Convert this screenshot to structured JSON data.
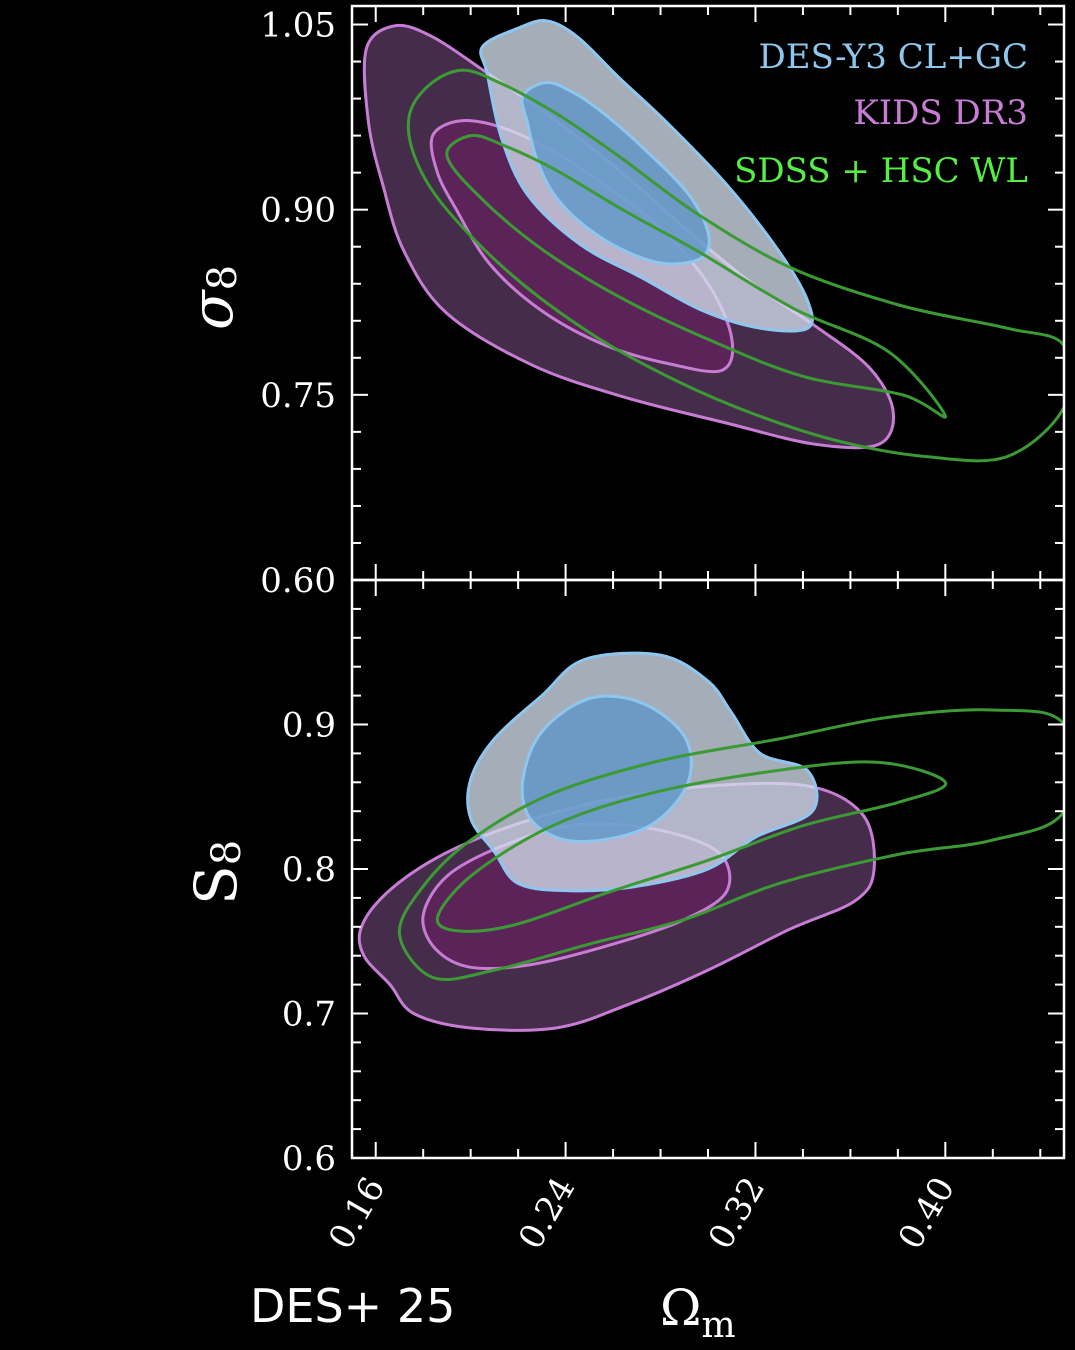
{
  "credit": "DES+ 25",
  "colors": {
    "des_y3": "#8fc6ee",
    "kids": "#c77dd4",
    "sdss_hsc": "#3c9a34",
    "sdss_hsc_legend": "#55ee44",
    "axes": "#ffffff",
    "background": "#000000"
  },
  "chart_data": [
    {
      "type": "contour",
      "panel": "top",
      "xlabel": "Ω",
      "xlabel_sub": "m",
      "ylabel": "σ",
      "ylabel_sub": "8",
      "xlim": [
        0.15,
        0.45
      ],
      "ylim": [
        0.6,
        1.065
      ],
      "xticks": [
        "0.16",
        "0.24",
        "0.32",
        "0.40"
      ],
      "yticks": [
        "0.60",
        "0.75",
        "0.90",
        "1.05"
      ],
      "legend": {
        "position": "top-right",
        "entries": [
          "DES-Y3 CL+GC",
          "KIDS DR3",
          "SDSS + HSC WL"
        ]
      },
      "series": [
        {
          "name": "KIDS DR3",
          "fill": true,
          "levels": [
            {
              "points": [
                [
                  0.156,
                  1.03
                ],
                [
                  0.168,
                  1.049
                ],
                [
                  0.184,
                  1.04
                ],
                [
                  0.206,
                  1.012
                ],
                [
                  0.236,
                  0.972
                ],
                [
                  0.265,
                  0.928
                ],
                [
                  0.292,
                  0.882
                ],
                [
                  0.318,
                  0.841
                ],
                [
                  0.345,
                  0.806
                ],
                [
                  0.368,
                  0.772
                ],
                [
                  0.378,
                  0.737
                ],
                [
                  0.372,
                  0.71
                ],
                [
                  0.345,
                  0.71
                ],
                [
                  0.306,
                  0.728
                ],
                [
                  0.265,
                  0.748
                ],
                [
                  0.226,
                  0.774
                ],
                [
                  0.19,
                  0.816
                ],
                [
                  0.172,
                  0.866
                ],
                [
                  0.163,
                  0.92
                ],
                [
                  0.157,
                  0.97
                ]
              ]
            },
            {
              "points": [
                [
                  0.184,
                  0.96
                ],
                [
                  0.196,
                  0.972
                ],
                [
                  0.214,
                  0.966
                ],
                [
                  0.236,
                  0.946
                ],
                [
                  0.258,
                  0.918
                ],
                [
                  0.28,
                  0.885
                ],
                [
                  0.3,
                  0.84
                ],
                [
                  0.31,
                  0.796
                ],
                [
                  0.306,
                  0.77
                ],
                [
                  0.284,
                  0.775
                ],
                [
                  0.257,
                  0.79
                ],
                [
                  0.23,
                  0.818
                ],
                [
                  0.208,
                  0.856
                ],
                [
                  0.194,
                  0.9
                ],
                [
                  0.186,
                  0.93
                ]
              ]
            }
          ]
        },
        {
          "name": "DES-Y3 CL+GC",
          "fill": true,
          "levels": [
            {
              "points": [
                [
                  0.207,
                  1.01
                ],
                [
                  0.205,
                  1.032
                ],
                [
                  0.22,
                  1.047
                ],
                [
                  0.232,
                  1.053
                ],
                [
                  0.245,
                  1.04
                ],
                [
                  0.262,
                  1.008
                ],
                [
                  0.283,
                  0.97
                ],
                [
                  0.308,
                  0.92
                ],
                [
                  0.33,
                  0.866
                ],
                [
                  0.342,
                  0.826
                ],
                [
                  0.342,
                  0.804
                ],
                [
                  0.322,
                  0.804
                ],
                [
                  0.298,
                  0.818
                ],
                [
                  0.272,
                  0.845
                ],
                [
                  0.246,
                  0.872
                ],
                [
                  0.224,
                  0.912
                ],
                [
                  0.213,
                  0.958
                ]
              ]
            },
            {
              "points": [
                [
                  0.224,
                  0.97
                ],
                [
                  0.222,
                  0.992
                ],
                [
                  0.232,
                  1.003
                ],
                [
                  0.244,
                  0.994
                ],
                [
                  0.258,
                  0.975
                ],
                [
                  0.276,
                  0.944
                ],
                [
                  0.292,
                  0.912
                ],
                [
                  0.3,
                  0.882
                ],
                [
                  0.298,
                  0.862
                ],
                [
                  0.284,
                  0.856
                ],
                [
                  0.268,
                  0.864
                ],
                [
                  0.25,
                  0.884
                ],
                [
                  0.236,
                  0.91
                ],
                [
                  0.228,
                  0.94
                ]
              ]
            }
          ]
        },
        {
          "name": "SDSS + HSC WL",
          "fill": false,
          "levels": [
            {
              "points": [
                [
                  0.174,
                  0.975
                ],
                [
                  0.182,
                  1.0
                ],
                [
                  0.196,
                  1.013
                ],
                [
                  0.212,
                  1.003
                ],
                [
                  0.236,
                  0.978
                ],
                [
                  0.262,
                  0.944
                ],
                [
                  0.296,
                  0.896
                ],
                [
                  0.336,
                  0.852
                ],
                [
                  0.382,
                  0.822
                ],
                [
                  0.426,
                  0.804
                ],
                [
                  0.45,
                  0.79
                ],
                [
                  0.45,
                  0.74
                ],
                [
                  0.426,
                  0.7
                ],
                [
                  0.392,
                  0.7
                ],
                [
                  0.356,
                  0.712
                ],
                [
                  0.32,
                  0.734
                ],
                [
                  0.286,
                  0.762
                ],
                [
                  0.252,
                  0.798
                ],
                [
                  0.218,
                  0.846
                ],
                [
                  0.19,
                  0.9
                ],
                [
                  0.177,
                  0.94
                ]
              ]
            },
            {
              "points": [
                [
                  0.19,
                  0.944
                ],
                [
                  0.2,
                  0.96
                ],
                [
                  0.214,
                  0.952
                ],
                [
                  0.236,
                  0.932
                ],
                [
                  0.264,
                  0.9
                ],
                [
                  0.296,
                  0.866
                ],
                [
                  0.336,
                  0.82
                ],
                [
                  0.376,
                  0.785
                ],
                [
                  0.4,
                  0.733
                ],
                [
                  0.382,
                  0.75
                ],
                [
                  0.34,
                  0.765
                ],
                [
                  0.3,
                  0.795
                ],
                [
                  0.262,
                  0.83
                ],
                [
                  0.23,
                  0.868
                ],
                [
                  0.204,
                  0.91
                ]
              ]
            }
          ]
        }
      ]
    },
    {
      "type": "contour",
      "panel": "bottom",
      "xlabel": "Ω",
      "xlabel_sub": "m",
      "ylabel": "S",
      "ylabel_sub": "8",
      "xlim": [
        0.15,
        0.45
      ],
      "ylim": [
        0.6,
        1.0
      ],
      "xticks": [
        "0.16",
        "0.24",
        "0.32",
        "0.40"
      ],
      "yticks": [
        "0.6",
        "0.7",
        "0.8",
        "0.9"
      ],
      "series": [
        {
          "name": "KIDS DR3",
          "fill": true,
          "levels": [
            {
              "points": [
                [
                  0.154,
                  0.76
                ],
                [
                  0.165,
                  0.784
                ],
                [
                  0.186,
                  0.808
                ],
                [
                  0.214,
                  0.828
                ],
                [
                  0.25,
                  0.845
                ],
                [
                  0.29,
                  0.856
                ],
                [
                  0.34,
                  0.858
                ],
                [
                  0.365,
                  0.838
                ],
                [
                  0.37,
                  0.8
                ],
                [
                  0.362,
                  0.778
                ],
                [
                  0.334,
                  0.758
                ],
                [
                  0.3,
                  0.73
                ],
                [
                  0.266,
                  0.706
                ],
                [
                  0.236,
                  0.69
                ],
                [
                  0.2,
                  0.69
                ],
                [
                  0.176,
                  0.7
                ],
                [
                  0.166,
                  0.72
                ],
                [
                  0.155,
                  0.74
                ]
              ]
            },
            {
              "points": [
                [
                  0.18,
                  0.768
                ],
                [
                  0.19,
                  0.795
                ],
                [
                  0.212,
                  0.815
                ],
                [
                  0.242,
                  0.83
                ],
                [
                  0.276,
                  0.828
                ],
                [
                  0.304,
                  0.812
                ],
                [
                  0.308,
                  0.785
                ],
                [
                  0.29,
                  0.765
                ],
                [
                  0.26,
                  0.748
                ],
                [
                  0.226,
                  0.734
                ],
                [
                  0.2,
                  0.732
                ],
                [
                  0.185,
                  0.745
                ]
              ]
            }
          ]
        },
        {
          "name": "DES-Y3 CL+GC",
          "fill": true,
          "levels": [
            {
              "points": [
                [
                  0.2,
                  0.862
                ],
                [
                  0.21,
                  0.89
                ],
                [
                  0.23,
                  0.92
                ],
                [
                  0.248,
                  0.945
                ],
                [
                  0.28,
                  0.948
                ],
                [
                  0.3,
                  0.93
                ],
                [
                  0.31,
                  0.908
                ],
                [
                  0.322,
                  0.88
                ],
                [
                  0.342,
                  0.868
                ],
                [
                  0.344,
                  0.84
                ],
                [
                  0.32,
                  0.822
                ],
                [
                  0.3,
                  0.8
                ],
                [
                  0.27,
                  0.788
                ],
                [
                  0.242,
                  0.785
                ],
                [
                  0.22,
                  0.79
                ],
                [
                  0.21,
                  0.812
                ],
                [
                  0.2,
                  0.835
                ]
              ]
            },
            {
              "points": [
                [
                  0.222,
                  0.862
                ],
                [
                  0.23,
                  0.895
                ],
                [
                  0.25,
                  0.918
                ],
                [
                  0.272,
                  0.915
                ],
                [
                  0.29,
                  0.892
                ],
                [
                  0.292,
                  0.862
                ],
                [
                  0.28,
                  0.835
                ],
                [
                  0.262,
                  0.822
                ],
                [
                  0.24,
                  0.82
                ],
                [
                  0.225,
                  0.835
                ]
              ]
            }
          ]
        },
        {
          "name": "SDSS + HSC WL",
          "fill": false,
          "levels": [
            {
              "points": [
                [
                  0.17,
                  0.755
                ],
                [
                  0.18,
                  0.788
                ],
                [
                  0.2,
                  0.82
                ],
                [
                  0.234,
                  0.852
                ],
                [
                  0.28,
                  0.875
                ],
                [
                  0.33,
                  0.89
                ],
                [
                  0.376,
                  0.905
                ],
                [
                  0.42,
                  0.91
                ],
                [
                  0.45,
                  0.9
                ],
                [
                  0.45,
                  0.84
                ],
                [
                  0.42,
                  0.82
                ],
                [
                  0.38,
                  0.81
                ],
                [
                  0.33,
                  0.79
                ],
                [
                  0.29,
                  0.765
                ],
                [
                  0.25,
                  0.748
                ],
                [
                  0.21,
                  0.73
                ],
                [
                  0.184,
                  0.725
                ]
              ]
            },
            {
              "points": [
                [
                  0.186,
                  0.766
                ],
                [
                  0.2,
                  0.795
                ],
                [
                  0.232,
                  0.828
                ],
                [
                  0.27,
                  0.85
                ],
                [
                  0.32,
                  0.866
                ],
                [
                  0.37,
                  0.874
                ],
                [
                  0.4,
                  0.86
                ],
                [
                  0.38,
                  0.846
                ],
                [
                  0.34,
                  0.83
                ],
                [
                  0.3,
                  0.806
                ],
                [
                  0.26,
                  0.785
                ],
                [
                  0.22,
                  0.762
                ],
                [
                  0.196,
                  0.757
                ]
              ]
            }
          ]
        }
      ]
    }
  ]
}
